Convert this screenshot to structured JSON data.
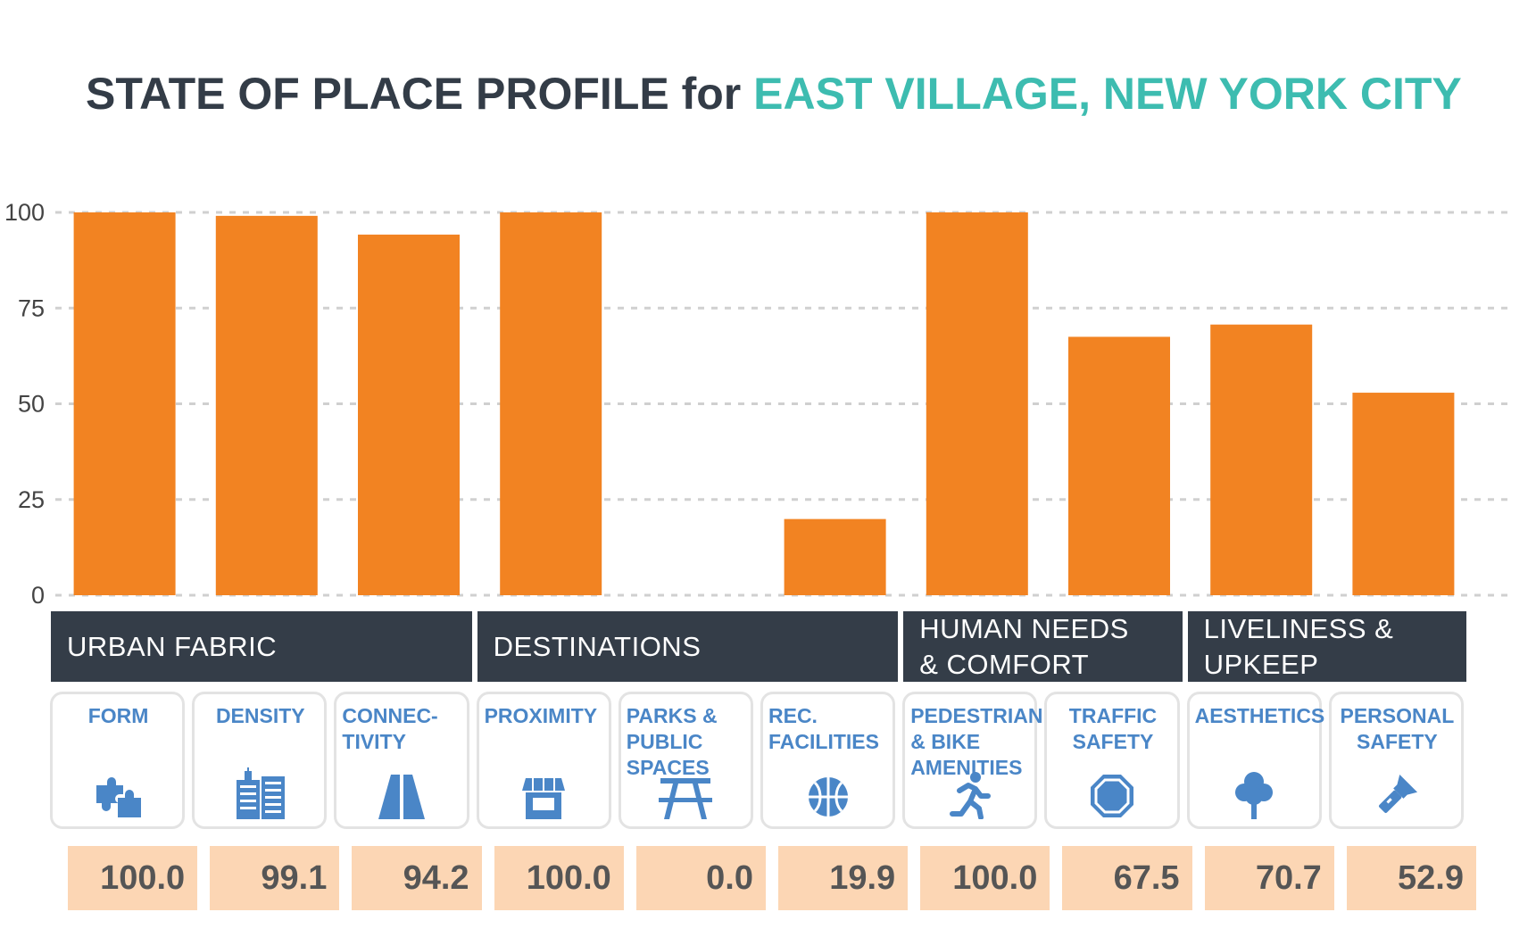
{
  "title": {
    "part1": "STATE OF PLACE PROFILE for",
    "part2": "EAST VILLAGE, NEW YORK CITY"
  },
  "colors": {
    "bar": "#f28322",
    "title_dark": "#333c47",
    "title_accent": "#3dbcb0",
    "band": "#343d48",
    "card_text": "#4a86c7",
    "value_bg": "#fcd6b4",
    "value_text": "#555555",
    "grid": "#d0d0d0"
  },
  "chart_data": {
    "type": "bar",
    "categories": [
      "FORM",
      "DENSITY",
      "CONNEC-\nTIVITY",
      "PROXIMITY",
      "PARKS &\nPUBLIC\nSPACES",
      "REC.\nFACILITIES",
      "PEDESTRIAN\n& BIKE\nAMENITIES",
      "TRAFFIC\nSAFETY",
      "AESTHETICS",
      "PERSONAL\nSAFETY"
    ],
    "values": [
      100.0,
      99.1,
      94.2,
      100.0,
      0.0,
      19.9,
      100.0,
      67.5,
      70.7,
      52.9
    ],
    "value_labels": [
      "100.0",
      "99.1",
      "94.2",
      "100.0",
      "0.0",
      "19.9",
      "100.0",
      "67.5",
      "70.7",
      "52.9"
    ],
    "ylim": [
      0,
      100
    ],
    "yticks": [
      0,
      25,
      50,
      75,
      100
    ],
    "grid": true,
    "legend": "none"
  },
  "groups": [
    {
      "label": "URBAN FABRIC",
      "span": [
        0,
        2
      ]
    },
    {
      "label": "DESTINATIONS",
      "span": [
        3,
        5
      ]
    },
    {
      "label": "HUMAN NEEDS\n& COMFORT",
      "span": [
        6,
        7
      ]
    },
    {
      "label": "LIVELINESS &\nUPKEEP",
      "span": [
        8,
        9
      ]
    }
  ],
  "cards": [
    {
      "icon": "puzzle-icon",
      "align": "center"
    },
    {
      "icon": "buildings-icon",
      "align": "center"
    },
    {
      "icon": "road-icon",
      "align": "left"
    },
    {
      "icon": "storefront-icon",
      "align": "left"
    },
    {
      "icon": "picnic-table-icon",
      "align": "left"
    },
    {
      "icon": "basketball-icon",
      "align": "left"
    },
    {
      "icon": "runner-icon",
      "align": "left"
    },
    {
      "icon": "stop-sign-icon",
      "align": "center"
    },
    {
      "icon": "tree-icon",
      "align": "left"
    },
    {
      "icon": "flashlight-icon",
      "align": "center"
    }
  ]
}
